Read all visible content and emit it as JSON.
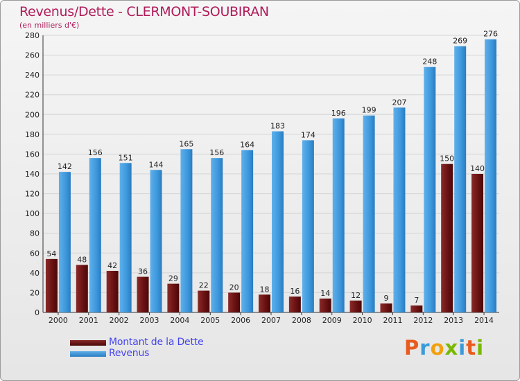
{
  "title": "Revenus/Dette - CLERMONT-SOUBIRAN",
  "subtitle": "(en milliers d'€)",
  "brand": {
    "letters": [
      "P",
      "r",
      "o",
      "x",
      "i",
      "t",
      "i"
    ],
    "colors": [
      "#e85a1e",
      "#3a9ad9",
      "#f2a10c",
      "#7ab800",
      "#3a9ad9",
      "#e85a1e",
      "#7ab800"
    ]
  },
  "legend": [
    {
      "label": "Montant de la Dette",
      "color": "#6b1212"
    },
    {
      "label": "Revenus",
      "color": "#3d97dc"
    }
  ],
  "chart_data": {
    "type": "bar",
    "categories": [
      "2000",
      "2001",
      "2002",
      "2003",
      "2004",
      "2005",
      "2006",
      "2007",
      "2008",
      "2009",
      "2010",
      "2011",
      "2012",
      "2013",
      "2014"
    ],
    "series": [
      {
        "name": "Montant de la Dette",
        "color": "#6b1212",
        "values": [
          54,
          48,
          42,
          36,
          29,
          22,
          20,
          18,
          16,
          14,
          12,
          9,
          7,
          150,
          140
        ]
      },
      {
        "name": "Revenus",
        "color": "#3d97dc",
        "values": [
          142,
          156,
          151,
          144,
          165,
          156,
          164,
          183,
          174,
          196,
          199,
          207,
          248,
          269,
          276
        ]
      }
    ],
    "ylim": [
      0,
      280
    ],
    "yticks": [
      0,
      20,
      40,
      60,
      80,
      100,
      120,
      140,
      160,
      180,
      200,
      220,
      240,
      260,
      280
    ],
    "grid": true,
    "legend_position": "bottom-left"
  }
}
